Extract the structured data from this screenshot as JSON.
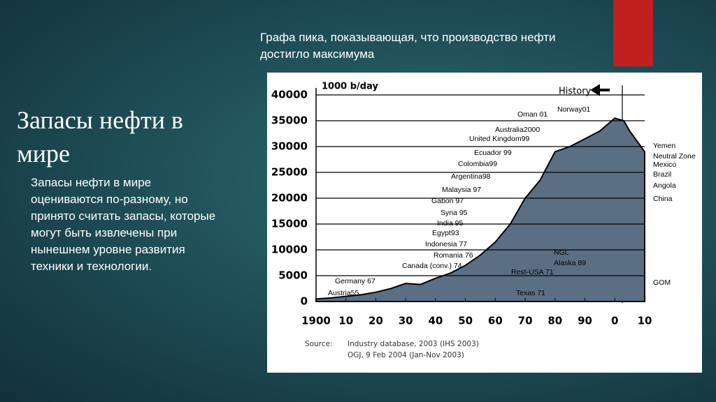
{
  "slide": {
    "title": "Запасы нефти в мире",
    "body": "Запасы нефти в мире оцениваются по-разному, но принято считать запасы, которые могут быть извлечены при нынешнем уровне развития техники и технологии.",
    "caption": "Графа пика, показывающая, что производство нефти достигло максимума"
  },
  "chart_data": {
    "type": "area",
    "y_label": "1000 b/day",
    "history_label": "History",
    "x": [
      1900,
      1905,
      1910,
      1915,
      1920,
      1925,
      1930,
      1935,
      1940,
      1945,
      1950,
      1955,
      1960,
      1965,
      1970,
      1975,
      1980,
      1985,
      1990,
      1995,
      2000,
      2003,
      2005,
      2010
    ],
    "values": [
      500,
      700,
      1000,
      1300,
      1800,
      2500,
      3500,
      3300,
      4500,
      5500,
      7000,
      9000,
      11500,
      15000,
      20000,
      23500,
      29000,
      30000,
      31500,
      33000,
      35500,
      35000,
      33000,
      29000
    ],
    "color": "#5a6f84",
    "xlim": [
      1900,
      2010
    ],
    "ylim": [
      0,
      40000
    ],
    "xticks": [
      1900,
      {
        "value": 1910,
        "label": "10"
      },
      {
        "value": 1920,
        "label": "20"
      },
      {
        "value": 1930,
        "label": "30"
      },
      {
        "value": 1940,
        "label": "40"
      },
      {
        "value": 1950,
        "label": "50"
      },
      {
        "value": 1960,
        "label": "60"
      },
      {
        "value": 1970,
        "label": "70"
      },
      {
        "value": 1980,
        "label": "80"
      },
      {
        "value": 1990,
        "label": "90"
      },
      {
        "value": 2000,
        "label": "0"
      },
      {
        "value": 2010,
        "label": "10"
      }
    ],
    "yticks": [
      0,
      5000,
      10000,
      15000,
      20000,
      25000,
      30000,
      35000,
      40000
    ],
    "grid": true,
    "annotations": [
      "Norway01",
      "Oman 01",
      "Australia2000",
      "United Kingdom99",
      "Ecuador 99",
      "Colombia99",
      "Argentina98",
      "Malaysia 97",
      "Gabon 97",
      "Syria 95",
      "India 95",
      "Egypt93",
      "Indonesia 77",
      "Romania 76",
      "Canada (conv.) 74",
      "NGL",
      "Alaska 89",
      "Rest-USA 71",
      "Germany 67",
      "Austria55",
      "Texas 71",
      "Yemen",
      "Neutral Zone",
      "Mexico",
      "Brazil",
      "Angola",
      "China",
      "GOM"
    ],
    "source": [
      "Source:",
      "Industry database, 2003 (IHS 2003)",
      "OGJ, 9 Feb 2004 (Jan-Nov 2003)"
    ]
  }
}
